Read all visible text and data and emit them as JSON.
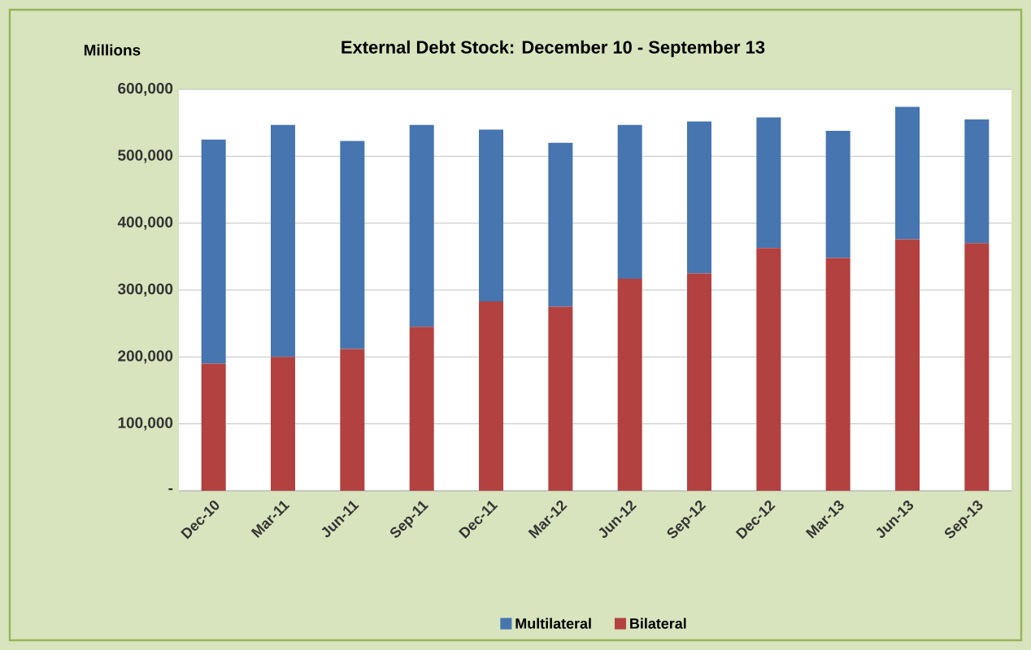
{
  "chart_data": {
    "type": "bar",
    "title": "External Debt Stock: December 10 - September 13",
    "ylabel": "Millions",
    "categories": [
      "Dec-10",
      "Mar-11",
      "Jun-11",
      "Sep-11",
      "Dec-11",
      "Mar-12",
      "Jun-12",
      "Sep-12",
      "Dec-12",
      "Mar-13",
      "Jun-13",
      "Sep-13"
    ],
    "stacked": true,
    "series": [
      {
        "name": "Bilateral",
        "color": "#b3413f",
        "values": [
          190000,
          200000,
          212000,
          245000,
          283000,
          275000,
          317000,
          325000,
          363000,
          348000,
          376000,
          370000
        ]
      },
      {
        "name": "Multilateral",
        "color": "#4675b0",
        "values": [
          335000,
          347000,
          311000,
          302000,
          257000,
          245000,
          230000,
          227000,
          195000,
          190000,
          198000,
          185000
        ]
      }
    ],
    "ylim": [
      0,
      600000
    ],
    "yticks": [
      {
        "value": 0,
        "label": "-"
      },
      {
        "value": 100000,
        "label": "100,000"
      },
      {
        "value": 200000,
        "label": "200,000"
      },
      {
        "value": 300000,
        "label": "300,000"
      },
      {
        "value": 400000,
        "label": "400,000"
      },
      {
        "value": 500000,
        "label": "500,000"
      },
      {
        "value": 600000,
        "label": "600,000"
      }
    ],
    "grid": "y",
    "legend": "bottom"
  }
}
